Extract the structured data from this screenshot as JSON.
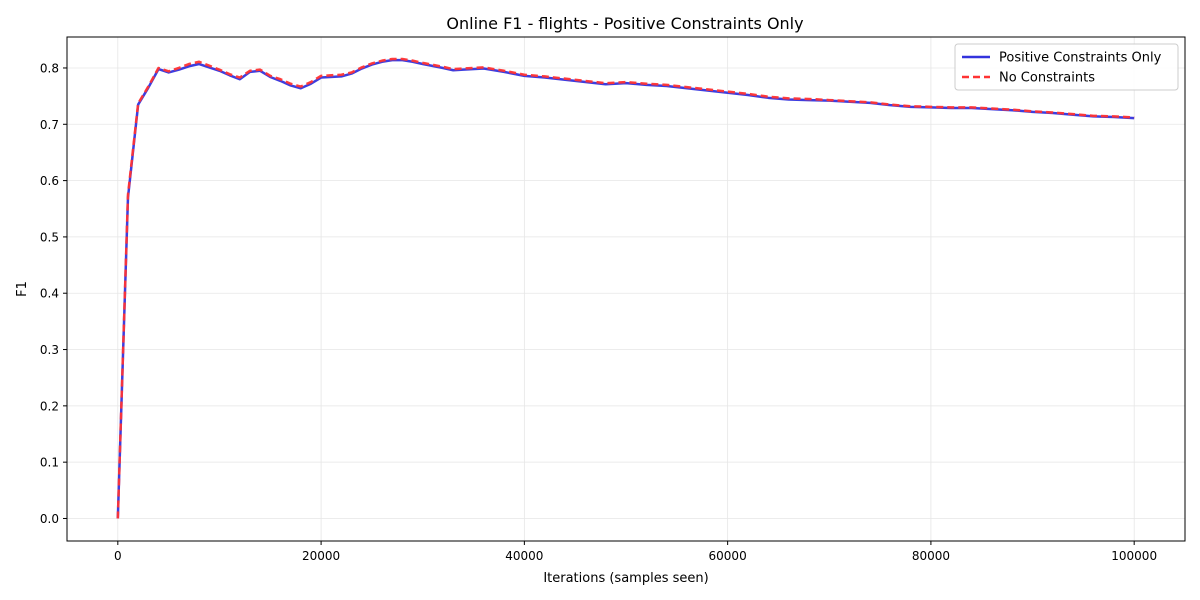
{
  "chart_data": {
    "type": "line",
    "title": "Online F1 - flights - Positive Constraints Only",
    "xlabel": "Iterations (samples seen)",
    "ylabel": "F1",
    "xlim": [
      -5000,
      105000
    ],
    "ylim": [
      -0.04,
      0.855
    ],
    "grid": true,
    "legend_position": "top-right",
    "x_ticks": [
      0,
      20000,
      40000,
      60000,
      80000,
      100000
    ],
    "x_tick_labels": [
      "0",
      "20000",
      "40000",
      "60000",
      "80000",
      "100000"
    ],
    "y_ticks": [
      0.0,
      0.1,
      0.2,
      0.3,
      0.4,
      0.5,
      0.6,
      0.7,
      0.8
    ],
    "y_tick_labels": [
      "0.0",
      "0.1",
      "0.2",
      "0.3",
      "0.4",
      "0.5",
      "0.6",
      "0.7",
      "0.8"
    ],
    "series": [
      {
        "name": "Positive Constraints Only",
        "color": "#3333dd",
        "style": "solid",
        "points": [
          [
            0,
            0.0
          ],
          [
            1000,
            0.57
          ],
          [
            2000,
            0.735
          ],
          [
            3000,
            0.765
          ],
          [
            4000,
            0.798
          ],
          [
            5000,
            0.792
          ],
          [
            6000,
            0.797
          ],
          [
            7000,
            0.803
          ],
          [
            8000,
            0.807
          ],
          [
            9000,
            0.801
          ],
          [
            10000,
            0.795
          ],
          [
            11000,
            0.787
          ],
          [
            12000,
            0.78
          ],
          [
            13000,
            0.793
          ],
          [
            14000,
            0.795
          ],
          [
            15000,
            0.784
          ],
          [
            16000,
            0.777
          ],
          [
            17000,
            0.769
          ],
          [
            18000,
            0.764
          ],
          [
            19000,
            0.772
          ],
          [
            20000,
            0.783
          ],
          [
            22000,
            0.785
          ],
          [
            23000,
            0.79
          ],
          [
            24000,
            0.799
          ],
          [
            25000,
            0.806
          ],
          [
            26000,
            0.811
          ],
          [
            27000,
            0.814
          ],
          [
            28000,
            0.814
          ],
          [
            29000,
            0.811
          ],
          [
            30000,
            0.807
          ],
          [
            32000,
            0.8
          ],
          [
            33000,
            0.796
          ],
          [
            34000,
            0.797
          ],
          [
            36000,
            0.799
          ],
          [
            38000,
            0.793
          ],
          [
            40000,
            0.786
          ],
          [
            42000,
            0.783
          ],
          [
            44000,
            0.779
          ],
          [
            46000,
            0.775
          ],
          [
            48000,
            0.771
          ],
          [
            50000,
            0.773
          ],
          [
            52000,
            0.77
          ],
          [
            54000,
            0.768
          ],
          [
            56000,
            0.764
          ],
          [
            58000,
            0.76
          ],
          [
            60000,
            0.756
          ],
          [
            62000,
            0.752
          ],
          [
            64000,
            0.747
          ],
          [
            66000,
            0.744
          ],
          [
            68000,
            0.743
          ],
          [
            70000,
            0.742
          ],
          [
            72000,
            0.74
          ],
          [
            74000,
            0.738
          ],
          [
            76000,
            0.734
          ],
          [
            78000,
            0.731
          ],
          [
            80000,
            0.73
          ],
          [
            82000,
            0.729
          ],
          [
            84000,
            0.729
          ],
          [
            86000,
            0.727
          ],
          [
            88000,
            0.725
          ],
          [
            90000,
            0.722
          ],
          [
            92000,
            0.72
          ],
          [
            94000,
            0.717
          ],
          [
            96000,
            0.714
          ],
          [
            98000,
            0.713
          ],
          [
            100000,
            0.711
          ]
        ]
      },
      {
        "name": "No Constraints",
        "color": "#ff3333",
        "style": "dashed",
        "points": [
          [
            0,
            0.0
          ],
          [
            1000,
            0.575
          ],
          [
            2000,
            0.737
          ],
          [
            3000,
            0.767
          ],
          [
            4000,
            0.8
          ],
          [
            5000,
            0.794
          ],
          [
            6000,
            0.8
          ],
          [
            7000,
            0.807
          ],
          [
            8000,
            0.811
          ],
          [
            9000,
            0.804
          ],
          [
            10000,
            0.797
          ],
          [
            11000,
            0.789
          ],
          [
            12000,
            0.783
          ],
          [
            13000,
            0.795
          ],
          [
            14000,
            0.797
          ],
          [
            15000,
            0.786
          ],
          [
            16000,
            0.78
          ],
          [
            17000,
            0.772
          ],
          [
            18000,
            0.767
          ],
          [
            19000,
            0.775
          ],
          [
            20000,
            0.786
          ],
          [
            22000,
            0.788
          ],
          [
            23000,
            0.792
          ],
          [
            24000,
            0.801
          ],
          [
            25000,
            0.808
          ],
          [
            26000,
            0.813
          ],
          [
            27000,
            0.816
          ],
          [
            28000,
            0.816
          ],
          [
            29000,
            0.813
          ],
          [
            30000,
            0.809
          ],
          [
            32000,
            0.802
          ],
          [
            33000,
            0.798
          ],
          [
            34000,
            0.799
          ],
          [
            36000,
            0.801
          ],
          [
            38000,
            0.795
          ],
          [
            40000,
            0.788
          ],
          [
            42000,
            0.785
          ],
          [
            44000,
            0.781
          ],
          [
            46000,
            0.777
          ],
          [
            48000,
            0.773
          ],
          [
            50000,
            0.775
          ],
          [
            52000,
            0.772
          ],
          [
            54000,
            0.77
          ],
          [
            56000,
            0.766
          ],
          [
            58000,
            0.762
          ],
          [
            60000,
            0.758
          ],
          [
            62000,
            0.754
          ],
          [
            64000,
            0.749
          ],
          [
            66000,
            0.746
          ],
          [
            68000,
            0.745
          ],
          [
            70000,
            0.743
          ],
          [
            72000,
            0.741
          ],
          [
            74000,
            0.739
          ],
          [
            76000,
            0.735
          ],
          [
            78000,
            0.732
          ],
          [
            80000,
            0.731
          ],
          [
            82000,
            0.73
          ],
          [
            84000,
            0.73
          ],
          [
            86000,
            0.728
          ],
          [
            88000,
            0.726
          ],
          [
            90000,
            0.723
          ],
          [
            92000,
            0.721
          ],
          [
            94000,
            0.718
          ],
          [
            96000,
            0.715
          ],
          [
            98000,
            0.714
          ],
          [
            100000,
            0.712
          ]
        ]
      }
    ]
  }
}
